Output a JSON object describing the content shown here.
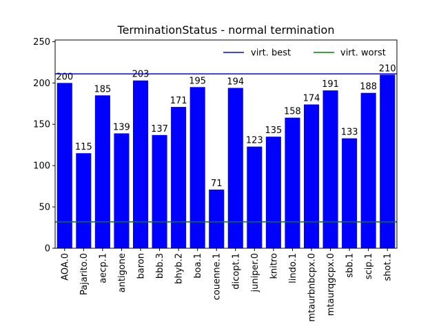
{
  "chart_data": {
    "type": "bar",
    "title": "TerminationStatus - normal termination",
    "xlabel": "",
    "ylabel": "",
    "ylim": [
      0,
      252
    ],
    "yticks": [
      0,
      50,
      100,
      150,
      200,
      250
    ],
    "categories": [
      "AOA.0",
      "Pajarito.0",
      "aecp.1",
      "antigone",
      "baron",
      "bbb.3",
      "bhyb.2",
      "boa.1",
      "couenne.1",
      "dicopt.1",
      "juniper.0",
      "knitro",
      "lindo.1",
      "mtaurbnbcpx.0",
      "mtaurqgcpx.0",
      "sbb.1",
      "scip.1",
      "shot.1"
    ],
    "values": [
      200,
      115,
      185,
      139,
      203,
      137,
      171,
      195,
      71,
      194,
      123,
      135,
      158,
      174,
      191,
      133,
      188,
      210
    ],
    "bar_color": "#0000ff",
    "reference_lines": [
      {
        "name": "virt. best",
        "value": 211,
        "color": "#0000ff"
      },
      {
        "name": "virt. worst",
        "value": 32,
        "color": "#008000"
      }
    ],
    "legend_position": "top-right",
    "grid": false
  }
}
